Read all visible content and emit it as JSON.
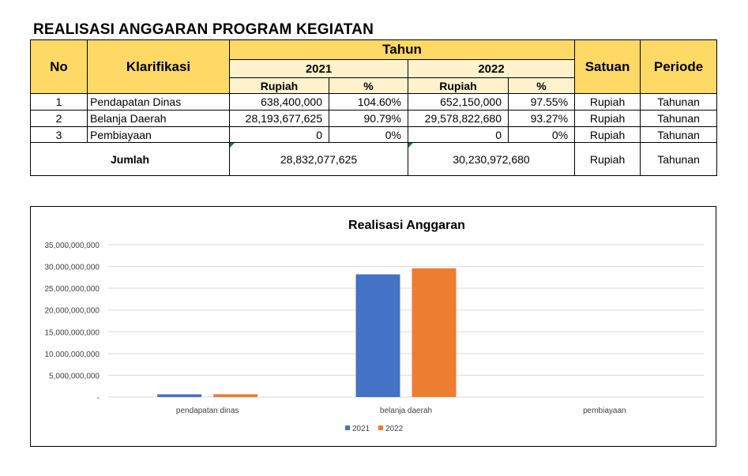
{
  "title": "REALISASI ANGGARAN PROGRAM KEGIATAN",
  "table": {
    "headers": {
      "no": "No",
      "klarifikasi": "Klarifikasi",
      "tahun": "Tahun",
      "year1": "2021",
      "year2": "2022",
      "rupiah": "Rupiah",
      "percent": "%",
      "satuan": "Satuan",
      "periode": "Periode"
    },
    "rows": [
      {
        "no": "1",
        "name": "Pendapatan Dinas",
        "r2021": "638,400,000",
        "p2021": "104.60%",
        "r2022": "652,150,000",
        "p2022": "97.55%",
        "satuan": "Rupiah",
        "periode": "Tahunan"
      },
      {
        "no": "2",
        "name": "Belanja Daerah",
        "r2021": "28,193,677,625",
        "p2021": "90.79%",
        "r2022": "29,578,822,680",
        "p2022": "93.27%",
        "satuan": "Rupiah",
        "periode": "Tahunan"
      },
      {
        "no": "3",
        "name": "Pembiayaan",
        "r2021": "0",
        "p2021": "0%",
        "r2022": "0",
        "p2022": "0%",
        "satuan": "Rupiah",
        "periode": "Tahunan"
      }
    ],
    "total": {
      "label": "Jumlah",
      "r2021": "28,832,077,625",
      "r2022": "30,230,972,680",
      "satuan": "Rupiah",
      "periode": "Tahunan"
    }
  },
  "chart_data": {
    "type": "bar",
    "title": "Realisasi Anggaran",
    "categories": [
      "pendapatan dinas",
      "belanja daerah",
      "pembiayaan"
    ],
    "series": [
      {
        "name": "2021",
        "values": [
          638400000,
          28193677625,
          0
        ],
        "color": "#4472c4"
      },
      {
        "name": "2022",
        "values": [
          652150000,
          29578822680,
          0
        ],
        "color": "#ed7d31"
      }
    ],
    "ylim": [
      0,
      35000000000
    ],
    "yticks": [
      0,
      5000000000,
      10000000000,
      15000000000,
      20000000000,
      25000000000,
      30000000000,
      35000000000
    ],
    "ytick_labels": [
      "-",
      "5,000,000,000",
      "10,000,000,000",
      "15,000,000,000",
      "20,000,000,000",
      "25,000,000,000",
      "30,000,000,000",
      "35,000,000,000"
    ],
    "grid": true,
    "legend_position": "bottom"
  }
}
